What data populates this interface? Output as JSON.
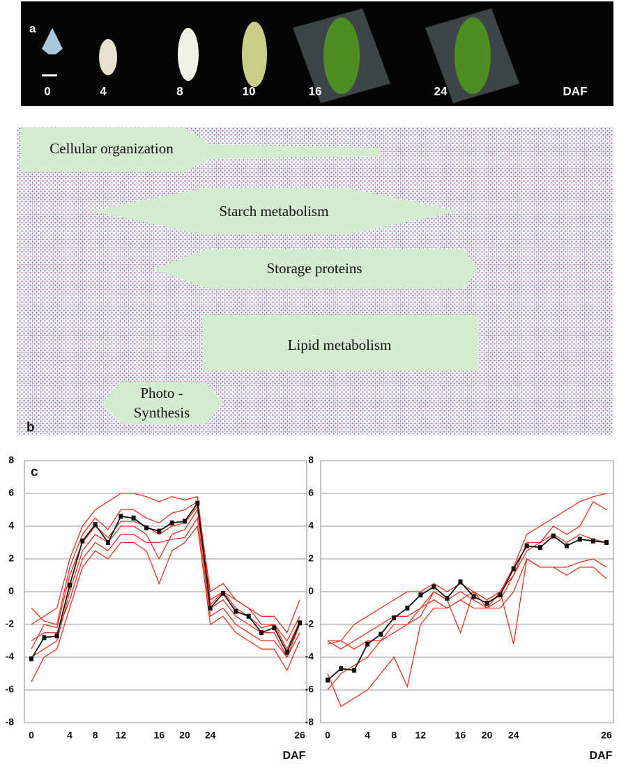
{
  "panel_a": {
    "label": "a",
    "stages": [
      "0",
      "4",
      "8",
      "10",
      "16",
      "24"
    ],
    "unit": "DAF"
  },
  "panel_b": {
    "label": "b",
    "categories": [
      "Cellular organization",
      "Starch metabolism",
      "Storage proteins",
      "Lipid metabolism"
    ],
    "photo_synthesis": [
      "Photo -",
      "Synthesis"
    ]
  },
  "panel_c": {
    "label": "c"
  },
  "chart_data": [
    {
      "type": "line",
      "xlabel": "DAF",
      "categories": [
        "0",
        null,
        null,
        "4",
        null,
        "8",
        null,
        "12",
        null,
        null,
        "16",
        null,
        "20",
        null,
        "24",
        null,
        null,
        null,
        null,
        null,
        null,
        "26"
      ],
      "ylim": [
        -8,
        8
      ],
      "yticks": [
        -8,
        -6,
        -4,
        -2,
        0,
        2,
        4,
        6,
        8
      ],
      "grid": true,
      "series": [
        {
          "color": "#e8321e",
          "values": [
            -2,
            -1.5,
            -1,
            2,
            4,
            5,
            5.5,
            6,
            6,
            5.8,
            5.5,
            5.8,
            5.6,
            5.8,
            -0.5,
            0,
            -0.5,
            -1,
            -1.5,
            -1.5,
            -2.5,
            -0.5
          ]
        },
        {
          "color": "#e8321e",
          "values": [
            -3,
            -2.5,
            -2.5,
            -0.5,
            2,
            3,
            2.5,
            3.5,
            3.5,
            3,
            3,
            3.2,
            3.3,
            4.5,
            -1.5,
            -1,
            -2,
            -2.5,
            -3,
            -3,
            -4,
            -2.5
          ]
        },
        {
          "color": "#e8321e",
          "values": [
            -5.5,
            -4,
            -3.5,
            -1,
            1.5,
            2.5,
            2,
            3,
            3,
            2.5,
            0.5,
            2.5,
            3,
            4,
            -2,
            -1.5,
            -2.5,
            -3,
            -3.5,
            -3.5,
            -4.8,
            -3
          ]
        },
        {
          "color": "#e8321e",
          "values": [
            -1,
            -1.8,
            -2,
            1.5,
            3.5,
            4.5,
            3.8,
            5,
            5,
            4.5,
            4.2,
            4.8,
            5,
            5.5,
            0,
            0.5,
            -0.5,
            -1,
            -2,
            -2,
            -3,
            -1.5
          ]
        },
        {
          "color": "#e8321e",
          "values": [
            -4,
            -3.5,
            -3,
            0,
            2.5,
            3.5,
            3,
            4,
            4,
            3.5,
            2,
            3.5,
            3.8,
            5,
            -1,
            -0.5,
            -1.5,
            -2,
            -2.5,
            -2.5,
            -4,
            -2
          ]
        },
        {
          "color": "#e8321e",
          "values": [
            -3.5,
            -2,
            -2.2,
            1,
            3,
            4,
            3.3,
            4.3,
            4.3,
            4,
            3.5,
            4,
            4.2,
            5.2,
            -0.8,
            0,
            -1,
            -1.5,
            -2.2,
            -2,
            -3.5,
            -1.8
          ]
        },
        {
          "color": "#111111",
          "markers": true,
          "values": [
            -4.1,
            -2.8,
            -2.7,
            0.4,
            3.1,
            4.1,
            3.0,
            4.6,
            4.5,
            3.9,
            3.7,
            4.2,
            4.3,
            5.4,
            -1.0,
            -0.1,
            -1.2,
            -1.5,
            -2.5,
            -2.2,
            -3.7,
            -1.9
          ]
        }
      ]
    },
    {
      "type": "line",
      "xlabel": "DAF",
      "categories": [
        "0",
        null,
        null,
        "4",
        null,
        "8",
        null,
        "12",
        null,
        null,
        "16",
        null,
        "20",
        null,
        "24",
        null,
        null,
        null,
        null,
        null,
        null,
        "26"
      ],
      "ylim": [
        -8,
        8
      ],
      "yticks": [
        -8,
        -6,
        -4,
        -2,
        0,
        2,
        4,
        6,
        8
      ],
      "grid": true,
      "series": [
        {
          "color": "#e8321e",
          "values": [
            -3,
            -3,
            -2,
            -1.5,
            -1,
            -0.5,
            0,
            0,
            0.5,
            0,
            0.5,
            0,
            -0.5,
            0,
            1.5,
            3.5,
            4,
            4.5,
            5,
            5.5,
            5.8,
            6
          ]
        },
        {
          "color": "#e8321e",
          "values": [
            -5,
            -7,
            -6.5,
            -6,
            -5,
            -4,
            -5.8,
            -2,
            -1,
            -1,
            -0.5,
            0,
            -1,
            -1,
            0,
            2,
            1.5,
            1.5,
            1.5,
            1.8,
            2,
            1.5
          ]
        },
        {
          "color": "#e8321e",
          "values": [
            -3,
            -3.5,
            -3,
            -2.5,
            -2,
            -1.5,
            -1.5,
            -1,
            0,
            -0.5,
            0,
            -0.5,
            -1,
            -0.5,
            1,
            3,
            3,
            3.5,
            3,
            3.5,
            3.2,
            3
          ]
        },
        {
          "color": "#e8321e",
          "values": [
            -3.2,
            -3,
            -3.5,
            -3,
            -3,
            -2,
            -2,
            -1,
            -0.5,
            -1,
            -0.5,
            -1,
            -1,
            0,
            -3.2,
            2,
            1.5,
            1.5,
            1,
            1.5,
            1.5,
            0.8
          ]
        },
        {
          "color": "#e8321e",
          "values": [
            -6,
            -5,
            -4.5,
            -4,
            -3,
            -2.5,
            -2,
            -1.5,
            0,
            -0.5,
            -2.5,
            0,
            -0.5,
            0,
            1,
            2.5,
            3,
            4,
            3.5,
            4,
            5.5,
            5
          ]
        },
        {
          "color": "#111111",
          "markers": true,
          "values": [
            -5.4,
            -4.7,
            -4.8,
            -3.2,
            -2.6,
            -1.6,
            -1.0,
            -0.2,
            0.3,
            -0.4,
            0.6,
            -0.3,
            -0.7,
            -0.2,
            1.4,
            2.8,
            2.7,
            3.4,
            2.8,
            3.2,
            3.1,
            3.0
          ]
        }
      ]
    }
  ]
}
